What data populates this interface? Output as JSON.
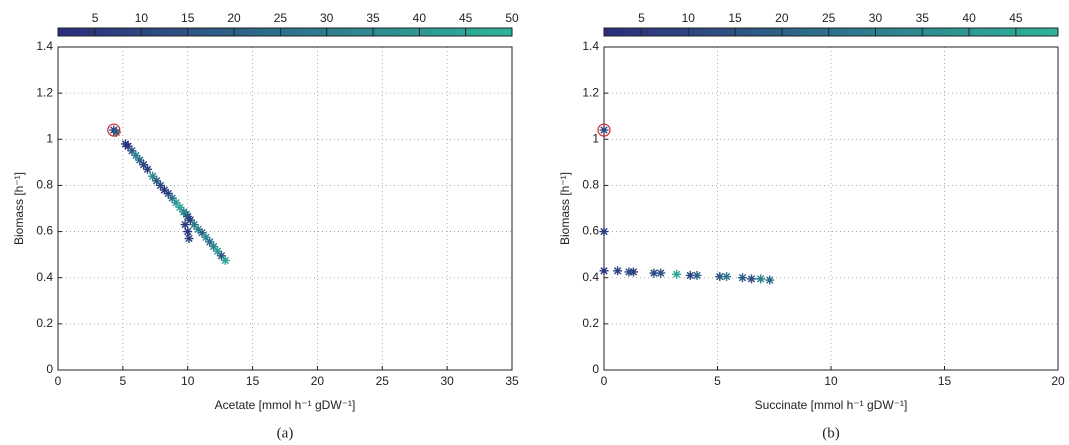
{
  "chart_data": [
    {
      "type": "scatter",
      "xlabel": "Acetate [mmol h⁻¹ gDW⁻¹]",
      "ylabel": "Biomass [h⁻¹]",
      "caption": "(a)",
      "xlim": [
        0,
        35
      ],
      "xticks": [
        0,
        5,
        10,
        15,
        20,
        25,
        30,
        35
      ],
      "ylim": [
        0,
        1.4
      ],
      "yticks": [
        0,
        0.2,
        0.4,
        0.6,
        0.8,
        1,
        1.2,
        1.4
      ],
      "grid": true,
      "colormap": [
        "#2c2e7c",
        "#2db59b"
      ],
      "clim": [
        1,
        50
      ],
      "cticks": [
        5,
        10,
        15,
        20,
        25,
        30,
        35,
        40,
        45,
        50
      ],
      "x": [
        4.3,
        4.5,
        5.2,
        5.4,
        5.7,
        6.0,
        6.3,
        6.6,
        6.9,
        7.3,
        7.6,
        7.9,
        8.2,
        8.5,
        8.8,
        9.1,
        9.4,
        9.7,
        9.9,
        10.0,
        10.2,
        10.5,
        10.8,
        11.1,
        11.4,
        11.7,
        12.0,
        12.3,
        12.6,
        12.9,
        9.8,
        10.0,
        10.1
      ],
      "y": [
        1.04,
        1.03,
        0.98,
        0.97,
        0.95,
        0.93,
        0.91,
        0.89,
        0.87,
        0.84,
        0.82,
        0.8,
        0.78,
        0.765,
        0.745,
        0.725,
        0.705,
        0.685,
        0.675,
        0.665,
        0.65,
        0.63,
        0.61,
        0.595,
        0.575,
        0.555,
        0.535,
        0.515,
        0.495,
        0.475,
        0.63,
        0.6,
        0.57
      ],
      "c": [
        8,
        20,
        5,
        3,
        15,
        30,
        22,
        10,
        6,
        35,
        18,
        12,
        4,
        9,
        25,
        40,
        45,
        30,
        38,
        14,
        7,
        28,
        33,
        20,
        36,
        24,
        30,
        42,
        16,
        44,
        6,
        4,
        8
      ],
      "highlight": {
        "x": 4.3,
        "y": 1.04,
        "color": "#d62728"
      }
    },
    {
      "type": "scatter",
      "xlabel": "Succinate [mmol h⁻¹ gDW⁻¹]",
      "ylabel": "Biomass [h⁻¹]",
      "caption": "(b)",
      "xlim": [
        0,
        20
      ],
      "xticks": [
        0,
        5,
        10,
        15,
        20
      ],
      "ylim": [
        0,
        1.4
      ],
      "yticks": [
        0,
        0.2,
        0.4,
        0.6,
        0.8,
        1,
        1.2,
        1.4
      ],
      "grid": true,
      "colormap": [
        "#2c2e7c",
        "#2db59b"
      ],
      "clim": [
        1,
        49.5
      ],
      "cticks": [
        5,
        10,
        15,
        20,
        25,
        30,
        35,
        40,
        45
      ],
      "x": [
        0,
        0,
        0,
        0.6,
        1.1,
        1.3,
        2.2,
        2.5,
        3.2,
        3.8,
        4.1,
        5.1,
        5.4,
        6.1,
        6.5,
        6.9,
        7.3
      ],
      "y": [
        1.04,
        0.6,
        0.43,
        0.43,
        0.425,
        0.425,
        0.42,
        0.42,
        0.415,
        0.41,
        0.41,
        0.405,
        0.405,
        0.4,
        0.395,
        0.395,
        0.39
      ],
      "c": [
        10,
        5,
        3,
        8,
        12,
        6,
        10,
        14,
        45,
        9,
        20,
        15,
        28,
        18,
        12,
        30,
        22
      ],
      "highlight": {
        "x": 0,
        "y": 1.04,
        "color": "#d62728"
      }
    }
  ]
}
